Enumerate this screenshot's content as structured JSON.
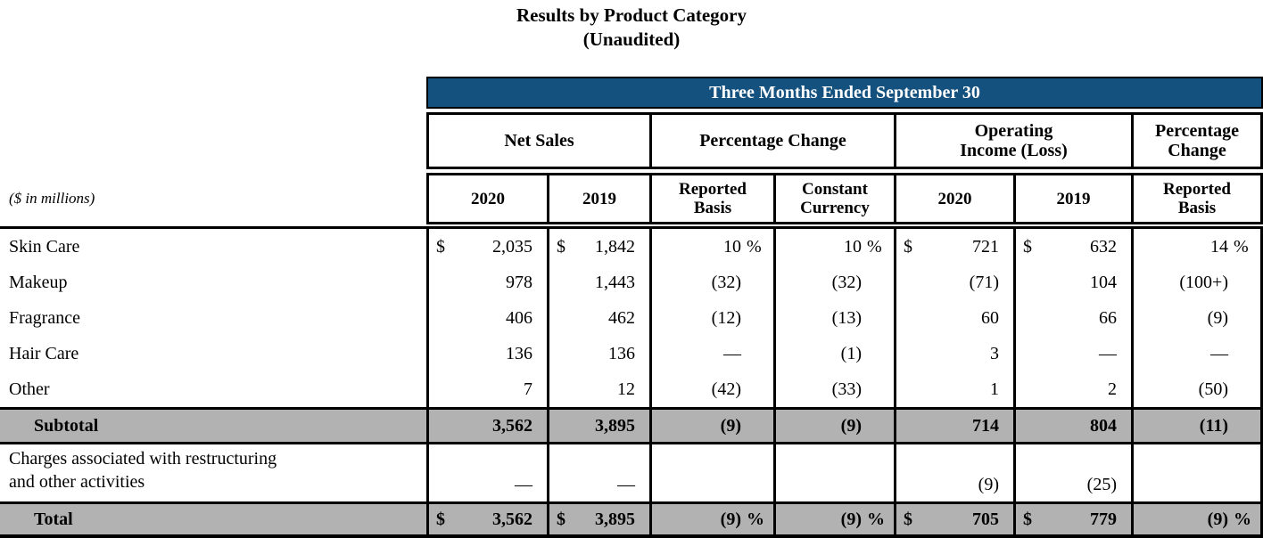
{
  "title": {
    "line1": "Results by Product Category",
    "line2": "(Unaudited)"
  },
  "colors": {
    "band_blue": "#15517E",
    "row_gray": "#B2B2B2",
    "border": "#000000",
    "band_text": "#FFFFFF"
  },
  "table": {
    "band_header": "Three Months Ended September 30",
    "units_note": "($ in millions)",
    "group_headers": [
      {
        "line1": "Net Sales",
        "line2": ""
      },
      {
        "line1": "Percentage Change",
        "line2": ""
      },
      {
        "line1": "Operating",
        "line2": "Income (Loss)"
      },
      {
        "line1": "Percentage",
        "line2": "Change"
      }
    ],
    "sub_headers": [
      {
        "line1": "2020",
        "line2": ""
      },
      {
        "line1": "2019",
        "line2": ""
      },
      {
        "line1": "Reported",
        "line2": "Basis"
      },
      {
        "line1": "Constant",
        "line2": "Currency"
      },
      {
        "line1": "2020",
        "line2": ""
      },
      {
        "line1": "2019",
        "line2": ""
      },
      {
        "line1": "Reported",
        "line2": "Basis"
      }
    ],
    "column_types": [
      "money",
      "money",
      "pct",
      "pct",
      "money",
      "money",
      "pct"
    ],
    "rows": [
      {
        "label": "Skin Care",
        "type": "data",
        "cells": [
          {
            "d": "$",
            "v": "2,035"
          },
          {
            "d": "$",
            "v": "1,842"
          },
          {
            "v": "10",
            "s": "%"
          },
          {
            "v": "10",
            "s": "%"
          },
          {
            "d": "$",
            "v": "721"
          },
          {
            "d": "$",
            "v": "632"
          },
          {
            "v": "14",
            "s": "%"
          }
        ]
      },
      {
        "label": "Makeup",
        "type": "data",
        "cells": [
          {
            "v": "978"
          },
          {
            "v": "1,443"
          },
          {
            "v": "(32)"
          },
          {
            "v": "(32)"
          },
          {
            "v": "(71)"
          },
          {
            "v": "104"
          },
          {
            "v": "(100+)"
          }
        ]
      },
      {
        "label": "Fragrance",
        "type": "data",
        "cells": [
          {
            "v": "406"
          },
          {
            "v": "462"
          },
          {
            "v": "(12)"
          },
          {
            "v": "(13)"
          },
          {
            "v": "60"
          },
          {
            "v": "66"
          },
          {
            "v": "(9)"
          }
        ]
      },
      {
        "label": "Hair Care",
        "type": "data",
        "cells": [
          {
            "v": "136"
          },
          {
            "v": "136"
          },
          {
            "v": "—"
          },
          {
            "v": "(1)"
          },
          {
            "v": "3"
          },
          {
            "v": "—"
          },
          {
            "v": "—"
          }
        ]
      },
      {
        "label": "Other",
        "type": "data",
        "cells": [
          {
            "v": "7"
          },
          {
            "v": "12"
          },
          {
            "v": "(42)"
          },
          {
            "v": "(33)"
          },
          {
            "v": "1"
          },
          {
            "v": "2"
          },
          {
            "v": "(50)"
          }
        ]
      },
      {
        "label": "Subtotal",
        "type": "subtotal",
        "cells": [
          {
            "v": "3,562"
          },
          {
            "v": "3,895"
          },
          {
            "v": "(9)"
          },
          {
            "v": "(9)"
          },
          {
            "v": "714"
          },
          {
            "v": "804"
          },
          {
            "v": "(11)"
          }
        ]
      },
      {
        "label": "Charges associated with restructuring and other activities",
        "type": "charges",
        "label_lines": [
          "Charges associated with restructuring",
          "and other activities"
        ],
        "cells": [
          {
            "v": "—"
          },
          {
            "v": "—"
          },
          {
            "v": ""
          },
          {
            "v": ""
          },
          {
            "v": "(9)"
          },
          {
            "v": "(25)"
          },
          {
            "v": ""
          }
        ]
      },
      {
        "label": "Total",
        "type": "total",
        "cells": [
          {
            "d": "$",
            "v": "3,562"
          },
          {
            "d": "$",
            "v": "3,895"
          },
          {
            "v": "(9)",
            "s": "%"
          },
          {
            "v": "(9)",
            "s": "%"
          },
          {
            "d": "$",
            "v": "705"
          },
          {
            "d": "$",
            "v": "779"
          },
          {
            "v": "(9)",
            "s": "%"
          }
        ]
      }
    ]
  }
}
